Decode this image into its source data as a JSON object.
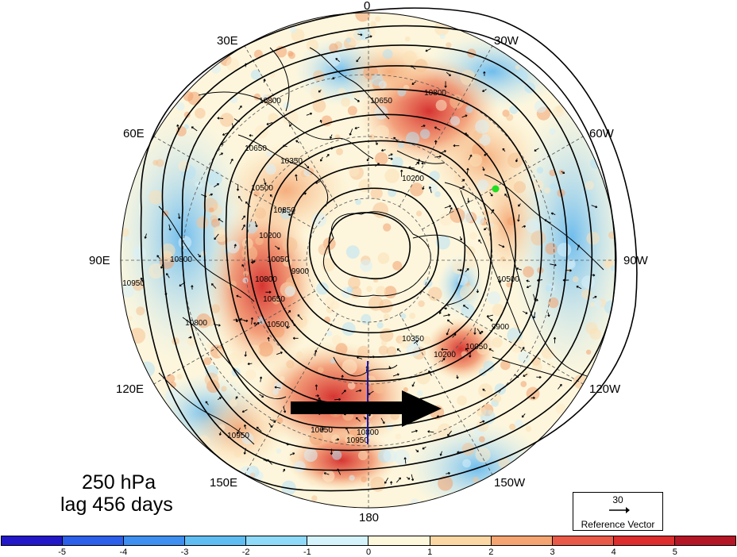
{
  "title": {
    "level": "250 hPa",
    "lag": "lag 456 days"
  },
  "longitude_labels": [
    {
      "id": "lon-0",
      "text": "0"
    },
    {
      "id": "lon-30w",
      "text": "30W"
    },
    {
      "id": "lon-60w",
      "text": "60W"
    },
    {
      "id": "lon-90w",
      "text": "90W"
    },
    {
      "id": "lon-120w",
      "text": "120W"
    },
    {
      "id": "lon-150w",
      "text": "150W"
    },
    {
      "id": "lon-180",
      "text": "180"
    },
    {
      "id": "lon-150e",
      "text": "150E"
    },
    {
      "id": "lon-120e",
      "text": "120E"
    },
    {
      "id": "lon-90e",
      "text": "90E"
    },
    {
      "id": "lon-60e",
      "text": "60E"
    },
    {
      "id": "lon-30e",
      "text": "30E"
    }
  ],
  "contour_labels": [
    "10800",
    "10650",
    "10800",
    "10350",
    "10200",
    "10650",
    "10500",
    "10350",
    "10200",
    "10050",
    "9900",
    "10800",
    "10650",
    "10500",
    "10350",
    "10200",
    "10050",
    "9900",
    "10500",
    "10650",
    "10800",
    "10800",
    "10800",
    "10950",
    "10950",
    "10950"
  ],
  "reference_vector": {
    "magnitude": "30",
    "label": "Reference Vector"
  },
  "colorbar": {
    "ticks": [
      "-5",
      "-4",
      "-3",
      "-2",
      "-1",
      "0",
      "1",
      "2",
      "3",
      "4",
      "5"
    ],
    "colors": [
      "#2218c8",
      "#2c5fea",
      "#3e8ff0",
      "#5fbdf2",
      "#8fdaf8",
      "#d4f3fb",
      "#fdf7dc",
      "#fbd7a3",
      "#f4a572",
      "#ea5a48",
      "#de2d2d",
      "#b51625"
    ]
  },
  "markers": {
    "green_dot_color": "#22dd22",
    "arrow_color": "#000000"
  }
}
